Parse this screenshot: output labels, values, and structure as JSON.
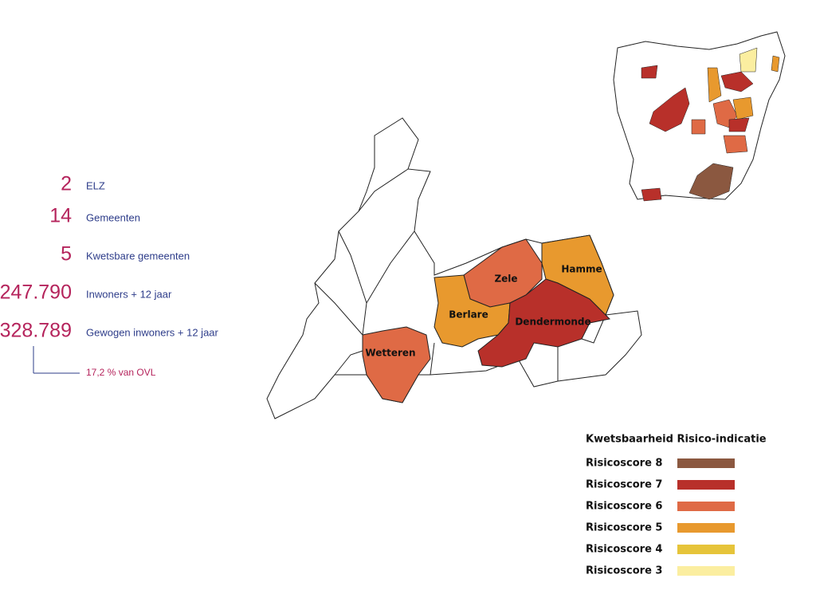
{
  "stats": [
    {
      "value": "2",
      "label": "ELZ"
    },
    {
      "value": "14",
      "label": "Gemeenten"
    },
    {
      "value": "5",
      "label": "Kwetsbare gemeenten"
    },
    {
      "value": "247.790",
      "label": "Inwoners + 12 jaar"
    },
    {
      "value": "328.789",
      "label": "Gewogen inwoners + 12 jaar"
    }
  ],
  "note": "17,2 % van OVL",
  "map": {
    "municipalities": [
      {
        "name": "Zele",
        "color": "#df6a45"
      },
      {
        "name": "Hamme",
        "color": "#e8992e"
      },
      {
        "name": "Berlare",
        "color": "#e8992e"
      },
      {
        "name": "Dendermonde",
        "color": "#b8302a"
      },
      {
        "name": "Wetteren",
        "color": "#df6a45"
      }
    ]
  },
  "legend": {
    "title": "Kwetsbaarheid Risico-indicatie",
    "items": [
      {
        "label": "Risicoscore 8",
        "color": "#8b5840"
      },
      {
        "label": "Risicoscore 7",
        "color": "#b8302a"
      },
      {
        "label": "Risicoscore 6",
        "color": "#df6a45"
      },
      {
        "label": "Risicoscore 5",
        "color": "#e8992e"
      },
      {
        "label": "Risicoscore 4",
        "color": "#e6c43a"
      },
      {
        "label": "Risicoscore 3",
        "color": "#fbeea0"
      }
    ]
  }
}
